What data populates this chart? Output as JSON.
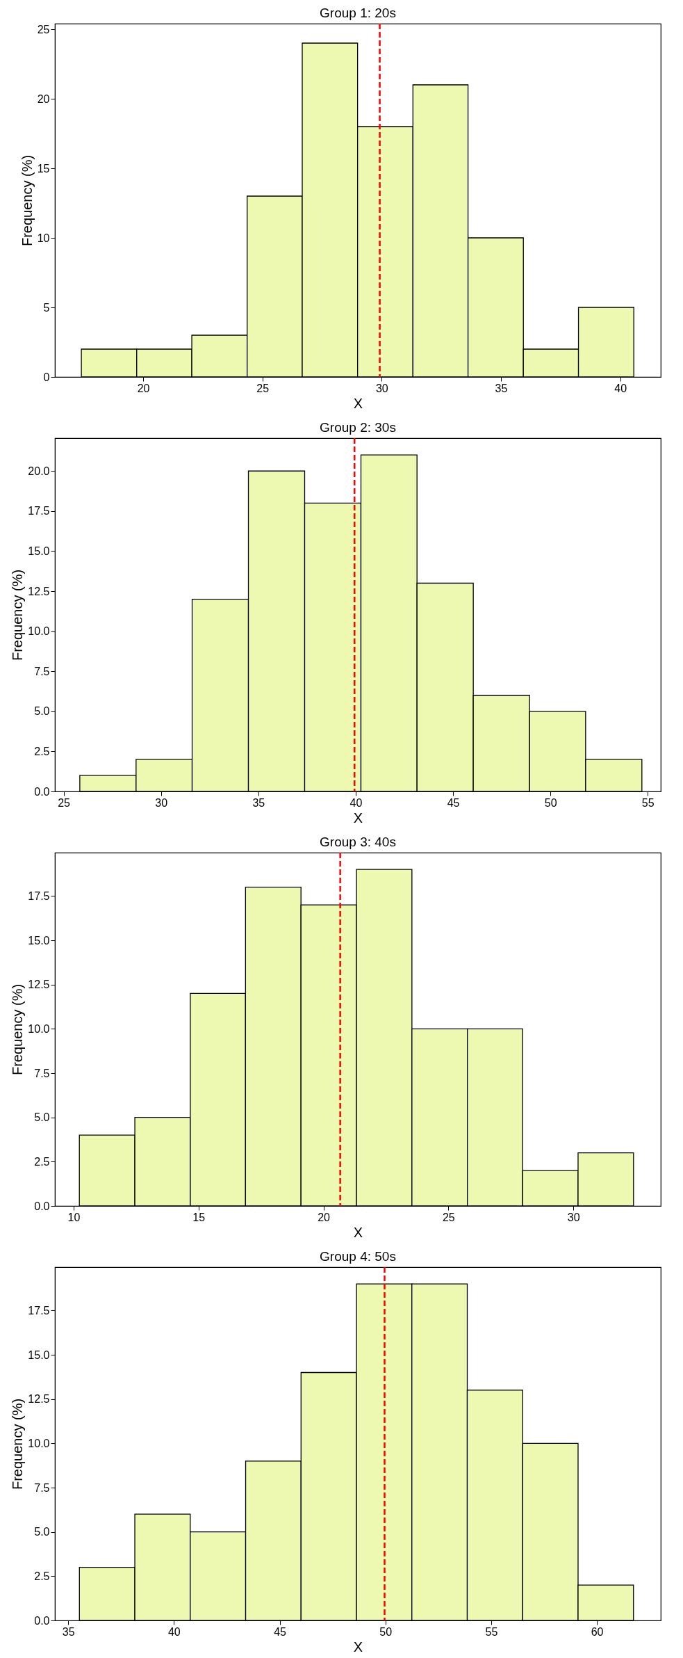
{
  "chart_data": [
    {
      "type": "histogram",
      "title": "Group 1: 20s",
      "xlabel": "X",
      "ylabel": "Frequency (%)",
      "color": "#edf8b1",
      "bins": [
        17.41,
        19.73,
        22.04,
        24.36,
        26.67,
        28.99,
        31.31,
        33.62,
        35.94,
        38.25,
        40.57
      ],
      "values": [
        2,
        2,
        3,
        13,
        24,
        18,
        21,
        10,
        2,
        5
      ],
      "xlim": [
        16.3,
        41.7
      ],
      "xticks": [
        20,
        25,
        30,
        35,
        40
      ],
      "ylim": [
        0,
        25.4
      ],
      "yticks": [
        0,
        5,
        10,
        15,
        20,
        25
      ],
      "grid": false,
      "ref_lines": [
        {
          "axis": "x",
          "value": 29.92,
          "color": "#ff0000",
          "line_style": "dashed"
        }
      ]
    },
    {
      "type": "histogram",
      "title": "Group 2: 30s",
      "xlabel": "X",
      "ylabel": "Frequency (%)",
      "color": "#edf8b1",
      "bins": [
        25.83,
        28.72,
        31.6,
        34.49,
        37.38,
        40.27,
        43.15,
        46.04,
        48.93,
        51.81,
        54.7
      ],
      "values": [
        1,
        2,
        12,
        20,
        18,
        21,
        13,
        6,
        5,
        2
      ],
      "xlim": [
        24.55,
        55.67
      ],
      "xticks": [
        25,
        30,
        35,
        40,
        45,
        50,
        55
      ],
      "ylim": [
        0,
        22.05
      ],
      "yticks": [
        {
          "value": 0,
          "label": "0.0"
        },
        {
          "value": 2.5,
          "label": "2.5"
        },
        {
          "value": 5,
          "label": "5.0"
        },
        {
          "value": 7.5,
          "label": "7.5"
        },
        {
          "value": 10,
          "label": "10.0"
        },
        {
          "value": 12.5,
          "label": "12.5"
        },
        {
          "value": 15,
          "label": "15.0"
        },
        {
          "value": 17.5,
          "label": "17.5"
        },
        {
          "value": 20,
          "label": "20.0"
        }
      ],
      "grid": false,
      "ref_lines": [
        {
          "axis": "x",
          "value": 39.94,
          "color": "#ff0000",
          "line_style": "dashed"
        }
      ]
    },
    {
      "type": "histogram",
      "title": "Group 3: 40s",
      "xlabel": "X",
      "ylabel": "Frequency (%)",
      "color": "#edf8b1",
      "bins": [
        10.23,
        12.45,
        14.67,
        16.88,
        19.1,
        21.32,
        23.54,
        25.76,
        27.97,
        30.19,
        32.41
      ],
      "values": [
        4,
        5,
        12,
        18,
        17,
        19,
        10,
        10,
        2,
        3
      ],
      "xlim": [
        9.25,
        33.5
      ],
      "xticks": [
        10,
        15,
        20,
        25,
        30
      ],
      "ylim": [
        0,
        19.95
      ],
      "yticks": [
        {
          "value": 0,
          "label": "0.0"
        },
        {
          "value": 2.5,
          "label": "2.5"
        },
        {
          "value": 5,
          "label": "5.0"
        },
        {
          "value": 7.5,
          "label": "7.5"
        },
        {
          "value": 10,
          "label": "10.0"
        },
        {
          "value": 12.5,
          "label": "12.5"
        },
        {
          "value": 15,
          "label": "15.0"
        },
        {
          "value": 17.5,
          "label": "17.5"
        }
      ],
      "grid": false,
      "ref_lines": [
        {
          "axis": "x",
          "value": 20.67,
          "color": "#ff0000",
          "line_style": "dashed"
        }
      ]
    },
    {
      "type": "histogram",
      "title": "Group 4: 50s",
      "xlabel": "X",
      "ylabel": "Frequency (%)",
      "color": "#edf8b1",
      "bins": [
        35.53,
        38.15,
        40.77,
        43.39,
        46.01,
        48.63,
        51.25,
        53.87,
        56.49,
        59.11,
        61.73
      ],
      "values": [
        3,
        6,
        5,
        9,
        14,
        19,
        19,
        13,
        10,
        2
      ],
      "xlim": [
        34.37,
        63.02
      ],
      "xticks": [
        35,
        40,
        45,
        50,
        55,
        60
      ],
      "ylim": [
        0,
        19.95
      ],
      "yticks": [
        {
          "value": 0,
          "label": "0.0"
        },
        {
          "value": 2.5,
          "label": "2.5"
        },
        {
          "value": 5,
          "label": "5.0"
        },
        {
          "value": 7.5,
          "label": "7.5"
        },
        {
          "value": 10,
          "label": "10.0"
        },
        {
          "value": 12.5,
          "label": "12.5"
        },
        {
          "value": 15,
          "label": "15.0"
        },
        {
          "value": 17.5,
          "label": "17.5"
        }
      ],
      "grid": false,
      "ref_lines": [
        {
          "axis": "x",
          "value": 49.96,
          "color": "#ff0000",
          "line_style": "dashed"
        }
      ]
    }
  ]
}
